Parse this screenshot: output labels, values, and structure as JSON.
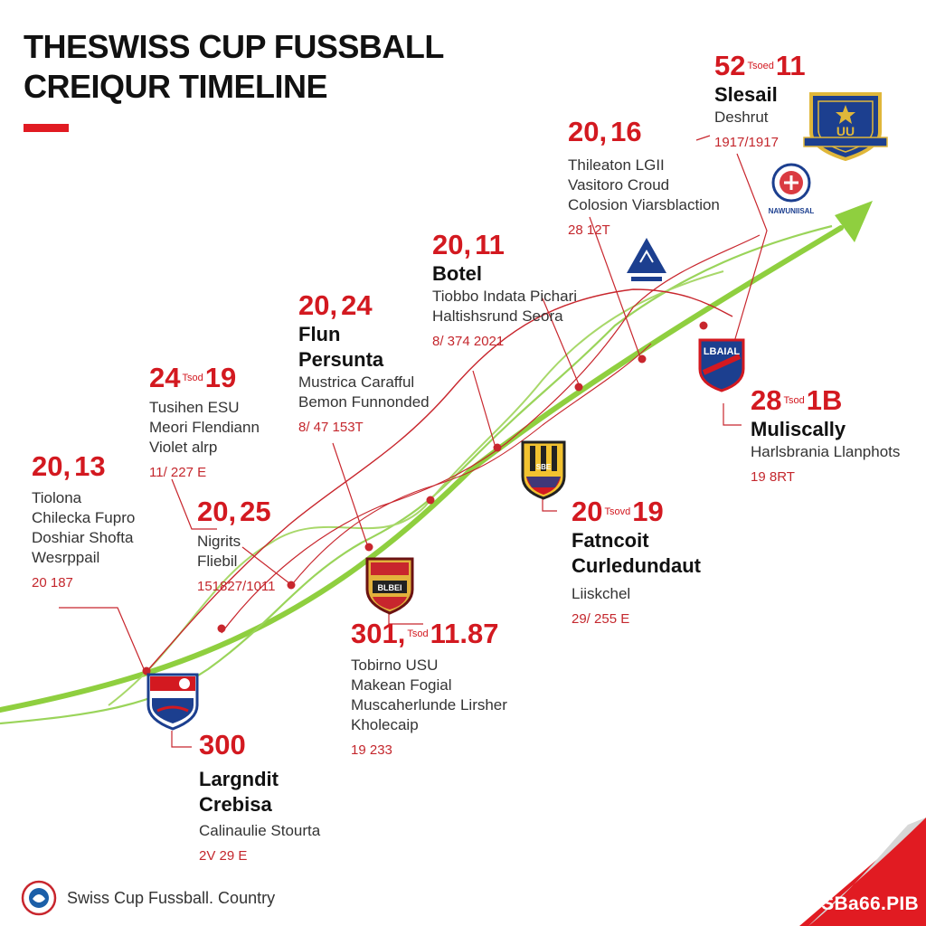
{
  "header": {
    "title_line1": "THESWISS CUP FUSSBALL",
    "title_line2": "CREIQUR TIMELINE"
  },
  "colors": {
    "accent_red": "#d31920",
    "trend_green": "#8fcf3f",
    "connector_red": "#c8262d"
  },
  "events": [
    {
      "year": "52",
      "year_small": "Tsoed",
      "year_suffix": "11",
      "name": "Slesail",
      "lines": [
        "Deshrut"
      ],
      "date": "1917/1917"
    },
    {
      "year": "20,",
      "year_small": "",
      "year_suffix": "16",
      "name": "",
      "lines": [
        "Thileaton LGII",
        "Vasitoro Croud",
        "Colosion Viarsblaction"
      ],
      "date": "28 12T"
    },
    {
      "year": "20,",
      "year_small": "",
      "year_suffix": "11",
      "name": "Botel",
      "lines": [
        "Tiobbo Indata Pichari",
        "Haltishsrund Seora"
      ],
      "date": "8/ 374 2021"
    },
    {
      "year": "20,",
      "year_small": "",
      "year_suffix": "24",
      "name": "Flun Persunta",
      "lines": [
        "Mustrica Carafful",
        "Bemon Funnonded"
      ],
      "date": "8/ 47 153T"
    },
    {
      "year": "24",
      "year_small": "Tsod",
      "year_suffix": "19",
      "name": "",
      "lines": [
        "Tusihen ESU",
        "Meori Flendiann",
        "Violet alrp"
      ],
      "date": "11/ 227 E"
    },
    {
      "year": "20,",
      "year_small": "",
      "year_suffix": "13",
      "name": "",
      "lines": [
        "Tiolona",
        "Chilecka Fupro",
        "Doshiar Shofta",
        "Wesrppail"
      ],
      "date": "20 187"
    },
    {
      "year": "20,",
      "year_small": "",
      "year_suffix": "25",
      "name": "",
      "lines": [
        "Nigrits",
        "Fliebil"
      ],
      "date": "151827/1011"
    },
    {
      "year": "28",
      "year_small": "Tsod",
      "year_suffix": "1B",
      "name": "Muliscally",
      "lines": [
        "Harlsbrania Llanphots"
      ],
      "date": "19 8RT"
    },
    {
      "year": "20",
      "year_small": "Tsovd",
      "year_suffix": "19",
      "name": "Fatncoit Curledundaut",
      "lines": [
        "Liiskchel"
      ],
      "date": "29/ 255 E"
    },
    {
      "year": "301,",
      "year_small": "Tsod",
      "year_suffix": "11.87",
      "name": "",
      "lines": [
        "Tobirno USU",
        "Makean Fogial",
        "Muscaherlunde Lirsher",
        "Kholecaip"
      ],
      "date": "19 233"
    },
    {
      "year": "300",
      "year_small": "",
      "year_suffix": "",
      "name": "Largndit Crebisa",
      "lines": [
        "Calinaulie Stourta"
      ],
      "date": "2V 29 E"
    }
  ],
  "crests": [
    {
      "name": "blue-gold-crest",
      "label": "UU"
    },
    {
      "name": "round-blue-crest",
      "label": "NAWUNIISAL"
    },
    {
      "name": "triangle-blue-crest",
      "label": ""
    },
    {
      "name": "red-blue-shield-crest",
      "label": "LBAIAL"
    },
    {
      "name": "yellow-black-stripes-crest",
      "label": "SBE"
    },
    {
      "name": "red-yellow-crest",
      "label": "BLBEI"
    },
    {
      "name": "navy-white-red-crest",
      "label": ""
    }
  ],
  "footer": {
    "text": "Swiss Cup Fussball. Country"
  },
  "corner": {
    "text": "SBa66.PIB"
  }
}
